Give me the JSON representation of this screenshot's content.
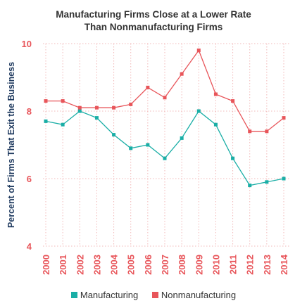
{
  "chart_data": {
    "type": "line",
    "title_lines": [
      "Manufacturing Firms Close at a Lower Rate",
      "Than Nonmanufacturing Firms"
    ],
    "ylabel": "Percent of Firms That Exit the Business",
    "xlabel": "",
    "ylim": [
      4,
      10
    ],
    "yticks": [
      "4",
      "6",
      "8",
      "10"
    ],
    "grid": true,
    "legend_position": "bottom",
    "categories": [
      "2000",
      "2001",
      "2002",
      "2003",
      "2004",
      "2005",
      "2006",
      "2007",
      "2008",
      "2009",
      "2010",
      "2011",
      "2012",
      "2013",
      "2014"
    ],
    "series": [
      {
        "name": "Manufacturing",
        "color": "#1aaea6",
        "values": [
          7.7,
          7.6,
          8.0,
          7.8,
          7.3,
          6.9,
          7.0,
          6.6,
          7.2,
          8.0,
          7.6,
          6.6,
          5.8,
          5.9,
          6.0
        ]
      },
      {
        "name": "Nonmanufacturing",
        "color": "#e8555a",
        "values": [
          8.3,
          8.3,
          8.1,
          8.1,
          8.1,
          8.2,
          8.7,
          8.4,
          9.1,
          9.8,
          8.5,
          8.3,
          7.4,
          7.4,
          7.8
        ]
      }
    ],
    "tick_color": "#e8555a",
    "label_color": "#1f3a5f"
  }
}
